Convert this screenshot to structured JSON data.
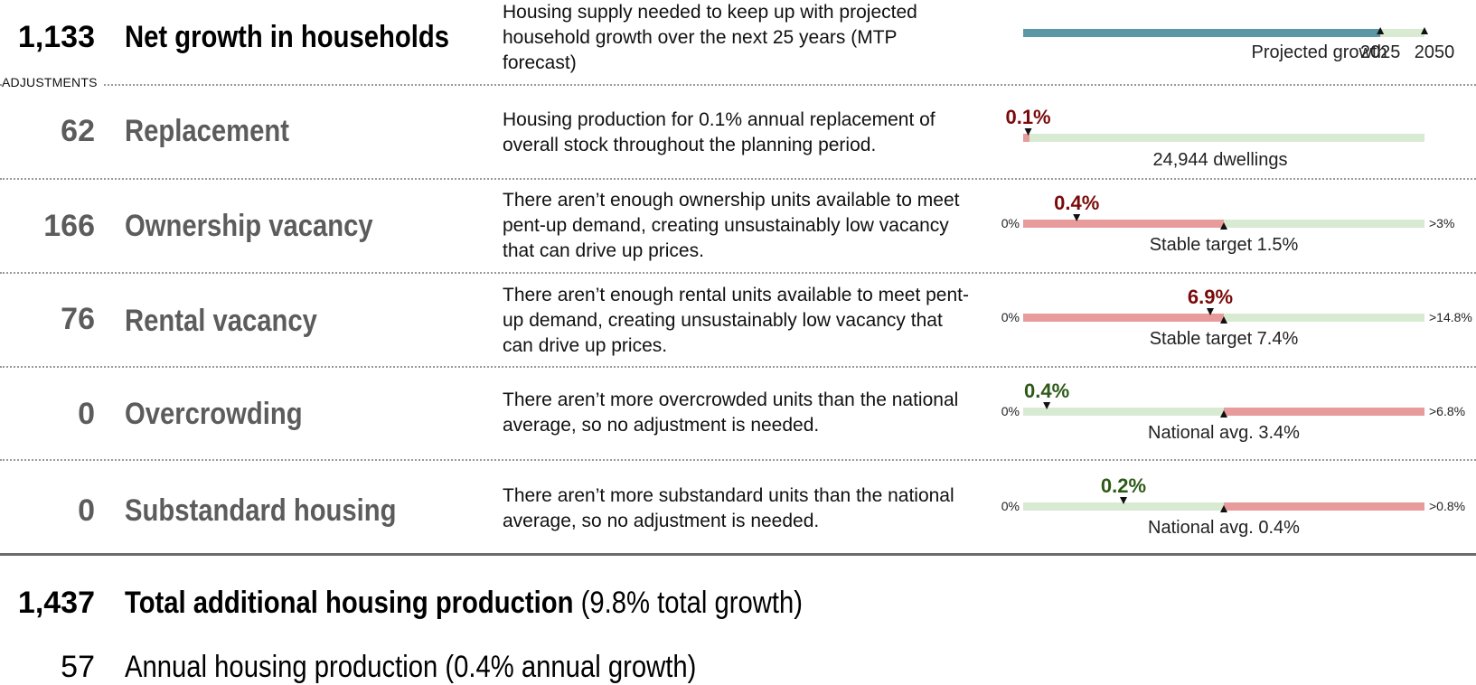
{
  "colors": {
    "teal": "#5b98a6",
    "light_green": "#d9ead2",
    "red_bar": "#e89b9b",
    "dark_red": "#7a0a0a",
    "dark_green": "#2d5a17"
  },
  "rows": [
    {
      "value": "1,133",
      "title": "Net growth in households",
      "desc": "Housing supply needed to keep up with projected household growth over the next 25 years (MTP forecast)"
    },
    {
      "value": "62",
      "title": "Replacement",
      "desc": "Housing production for 0.1% annual replacement of overall stock throughout the planning period."
    },
    {
      "value": "166",
      "title": "Ownership vacancy",
      "desc": "There aren’t enough ownership units available to meet pent-up demand, creating unsustainably low vacancy that can drive up prices."
    },
    {
      "value": "76",
      "title": "Rental vacancy",
      "desc": "There aren’t enough rental units available to meet pent-up demand, creating unsustainably low vacancy that can drive up prices."
    },
    {
      "value": "0",
      "title": "Overcrowding",
      "desc": "There aren’t more overcrowded units than the national average, so no adjustment is needed."
    },
    {
      "value": "0",
      "title": "Substandard housing",
      "desc": "There aren’t more substandard units than the national average, so no adjustment is needed."
    }
  ],
  "adjustments_label": "ADJUSTMENTS",
  "total": {
    "value": "1,437",
    "label": "Total additional housing production",
    "note": "(9.8% total growth)"
  },
  "annual": {
    "value": "57",
    "label": "Annual housing production (0.4% annual growth)"
  },
  "chart_data": [
    {
      "type": "bar",
      "row": "Net growth in households",
      "label": "Projected growth",
      "current_year": "2025",
      "end_year": "2050",
      "filled_fraction": 0.89,
      "fill_color": "teal"
    },
    {
      "type": "bar",
      "row": "Replacement",
      "value_label": "0.1%",
      "value": 0.1,
      "scale": [
        0,
        8.0
      ],
      "caption": "24,944 dwellings",
      "value_color": "dark_red"
    },
    {
      "type": "bar",
      "row": "Ownership vacancy",
      "value_label": "0.4%",
      "value": 0.4,
      "target": 1.5,
      "scale": [
        0,
        3
      ],
      "min_label": "0%",
      "max_label": ">3%",
      "caption": "Stable target 1.5%",
      "low_color": "red_bar",
      "high_color": "light_green",
      "value_color": "dark_red"
    },
    {
      "type": "bar",
      "row": "Rental vacancy",
      "value_label": "6.9%",
      "value": 6.9,
      "target": 7.4,
      "scale": [
        0,
        14.8
      ],
      "min_label": "0%",
      "max_label": ">14.8%",
      "caption": "Stable target 7.4%",
      "low_color": "red_bar",
      "high_color": "light_green",
      "value_color": "dark_red"
    },
    {
      "type": "bar",
      "row": "Overcrowding",
      "value_label": "0.4%",
      "value": 0.4,
      "target": 3.4,
      "scale": [
        0,
        6.8
      ],
      "min_label": "0%",
      "max_label": ">6.8%",
      "caption": "National avg. 3.4%",
      "low_color": "light_green",
      "high_color": "red_bar",
      "value_color": "dark_green"
    },
    {
      "type": "bar",
      "row": "Substandard housing",
      "value_label": "0.2%",
      "value": 0.2,
      "target": 0.4,
      "scale": [
        0,
        0.8
      ],
      "min_label": "0%",
      "max_label": ">0.8%",
      "caption": "National avg. 0.4%",
      "low_color": "light_green",
      "high_color": "red_bar",
      "value_color": "dark_green"
    }
  ]
}
